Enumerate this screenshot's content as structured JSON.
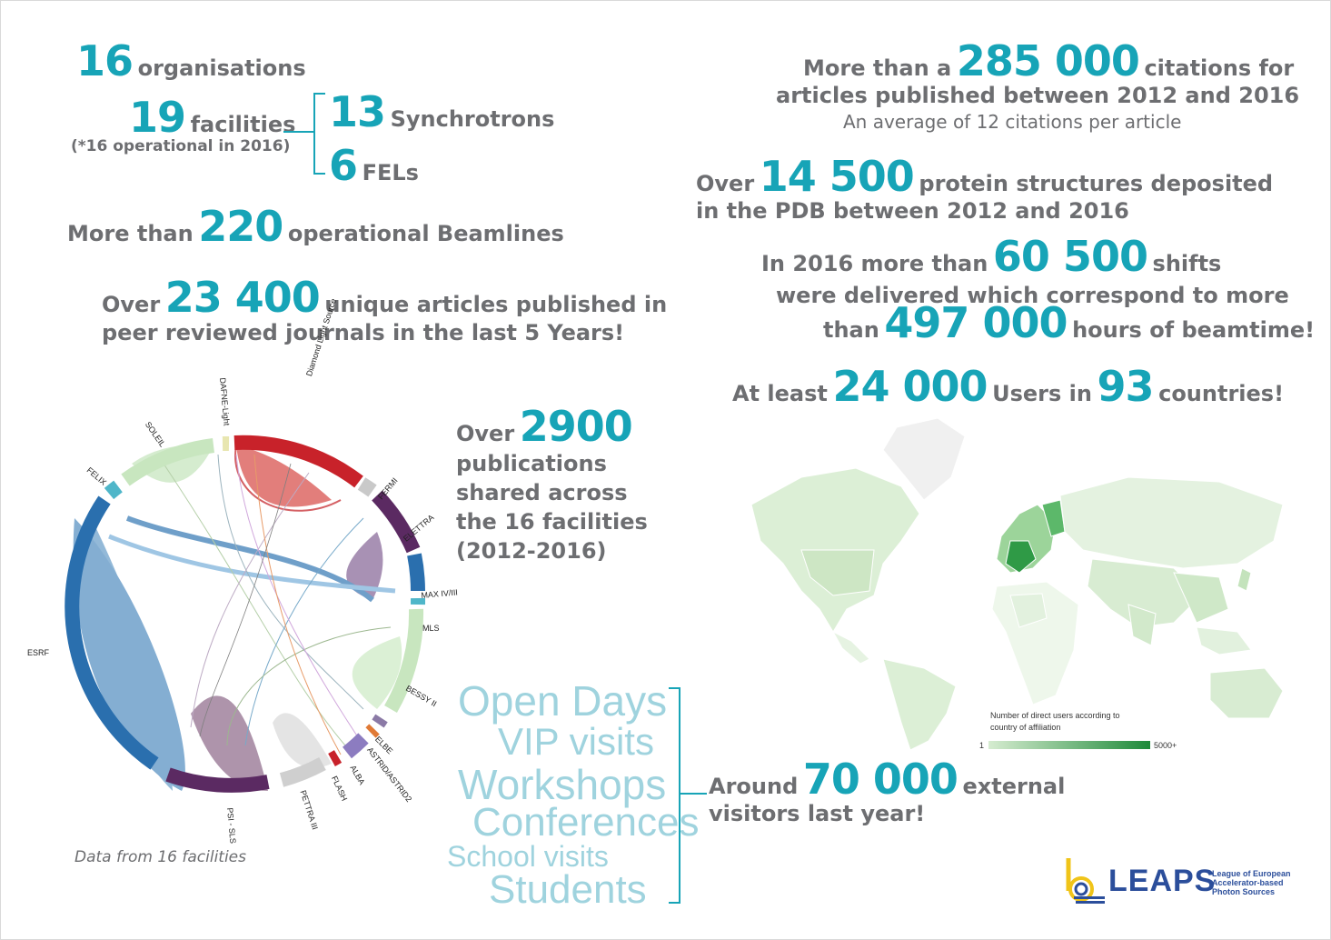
{
  "stats": {
    "organisations": {
      "num": "16",
      "label": "organisations"
    },
    "facilities": {
      "num": "19",
      "label": "facilities",
      "note": "(*16 operational in 2016)"
    },
    "synchrotrons": {
      "num": "13",
      "label": "Synchrotrons"
    },
    "fels": {
      "num": "6",
      "label": "FELs"
    },
    "beamlines": {
      "pre": "More than",
      "num": "220",
      "post": "operational Beamlines"
    },
    "articles": {
      "pre": "Over",
      "num": "23 400",
      "post": "unique articles published in",
      "line2": "peer reviewed journals in the last 5 Years!"
    },
    "shared": {
      "pre": "Over",
      "num": "2900",
      "line2": "publications",
      "line3": "shared across",
      "line4": "the 16 facilities",
      "line5": "(2012-2016)"
    },
    "citations": {
      "pre": "More than a",
      "num": "285 000",
      "post": "citations for",
      "line2": "articles published between 2012 and 2016",
      "line3": "An average of 12 citations per article"
    },
    "protein": {
      "pre": "Over",
      "num": "14 500",
      "post": "protein structures deposited",
      "line2": "in the PDB between 2012 and 2016"
    },
    "shifts": {
      "pre": "In 2016 more than",
      "num": "60 500",
      "post": "shifts",
      "line2": "were delivered which correspond to more",
      "line3_pre": "than",
      "line3_num": "497 000",
      "line3_post": "hours of beamtime!"
    },
    "users": {
      "pre": "At least",
      "num": "24 000",
      "mid": "Users in",
      "num2": "93",
      "post": "countries!"
    },
    "visitors": {
      "pre": "Around",
      "num": "70 000",
      "post": "external",
      "line2": "visitors last year!"
    }
  },
  "chord": {
    "caption": "Data from 16 facilities",
    "facilities": [
      "Diamond Light Source",
      "FERMI",
      "ELETTRA",
      "MAX IV/III",
      "MLS",
      "BESSY II",
      "ELBE",
      "ASTRID/ASTRID2",
      "ALBA",
      "FLASH",
      "PETTRA III",
      "PSI - SLS",
      "ESRF",
      "FELIX",
      "SOLEIL",
      "DAFNE-Light"
    ]
  },
  "cloud": [
    "Open Days",
    "VIP visits",
    "Workshops",
    "Conferences",
    "School visits",
    "Students"
  ],
  "map_legend": {
    "title_line1": "Number of direct users according to",
    "title_line2": "country of affiliation",
    "min": "1",
    "max": "5000+"
  },
  "logo": {
    "name": "LEAPS",
    "line1": "League of European",
    "line2": "Accelerator-based",
    "line3": "Photon Sources"
  },
  "colors": {
    "accent": "#17a4b7",
    "text": "#6d6e71",
    "cloud": "#9fd3de",
    "map_light": "#d6ecd0",
    "map_dark": "#1e8a3a"
  }
}
